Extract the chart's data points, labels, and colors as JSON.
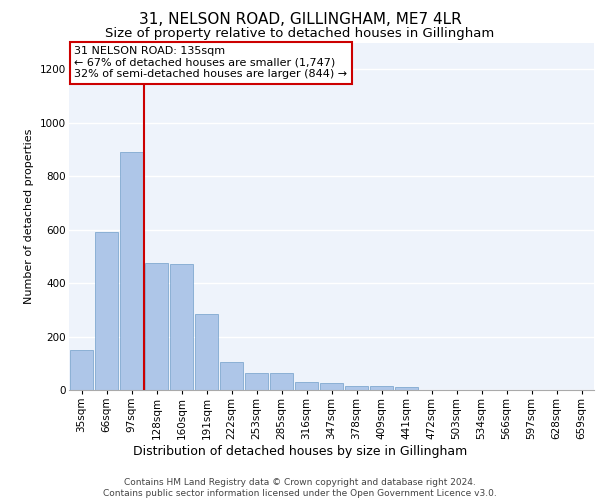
{
  "title1": "31, NELSON ROAD, GILLINGHAM, ME7 4LR",
  "title2": "Size of property relative to detached houses in Gillingham",
  "xlabel": "Distribution of detached houses by size in Gillingham",
  "ylabel": "Number of detached properties",
  "categories": [
    "35sqm",
    "66sqm",
    "97sqm",
    "128sqm",
    "160sqm",
    "191sqm",
    "222sqm",
    "253sqm",
    "285sqm",
    "316sqm",
    "347sqm",
    "378sqm",
    "409sqm",
    "441sqm",
    "472sqm",
    "503sqm",
    "534sqm",
    "566sqm",
    "597sqm",
    "628sqm",
    "659sqm"
  ],
  "values": [
    150,
    590,
    890,
    475,
    470,
    285,
    105,
    65,
    65,
    30,
    25,
    15,
    15,
    10,
    0,
    0,
    0,
    0,
    0,
    0,
    0
  ],
  "bar_color": "#aec6e8",
  "bar_edge_color": "#5a8fc0",
  "annotation_text": "31 NELSON ROAD: 135sqm\n← 67% of detached houses are smaller (1,747)\n32% of semi-detached houses are larger (844) →",
  "annotation_box_color": "#ffffff",
  "annotation_box_edge": "#cc0000",
  "annotation_text_color": "#000000",
  "vline_color": "#cc0000",
  "ylim": [
    0,
    1300
  ],
  "yticks": [
    0,
    200,
    400,
    600,
    800,
    1000,
    1200
  ],
  "bg_color": "#eef3fb",
  "grid_color": "#ffffff",
  "footnote": "Contains HM Land Registry data © Crown copyright and database right 2024.\nContains public sector information licensed under the Open Government Licence v3.0.",
  "title1_fontsize": 11,
  "title2_fontsize": 9.5,
  "xlabel_fontsize": 9,
  "ylabel_fontsize": 8,
  "tick_fontsize": 7.5,
  "annot_fontsize": 8,
  "footnote_fontsize": 6.5
}
